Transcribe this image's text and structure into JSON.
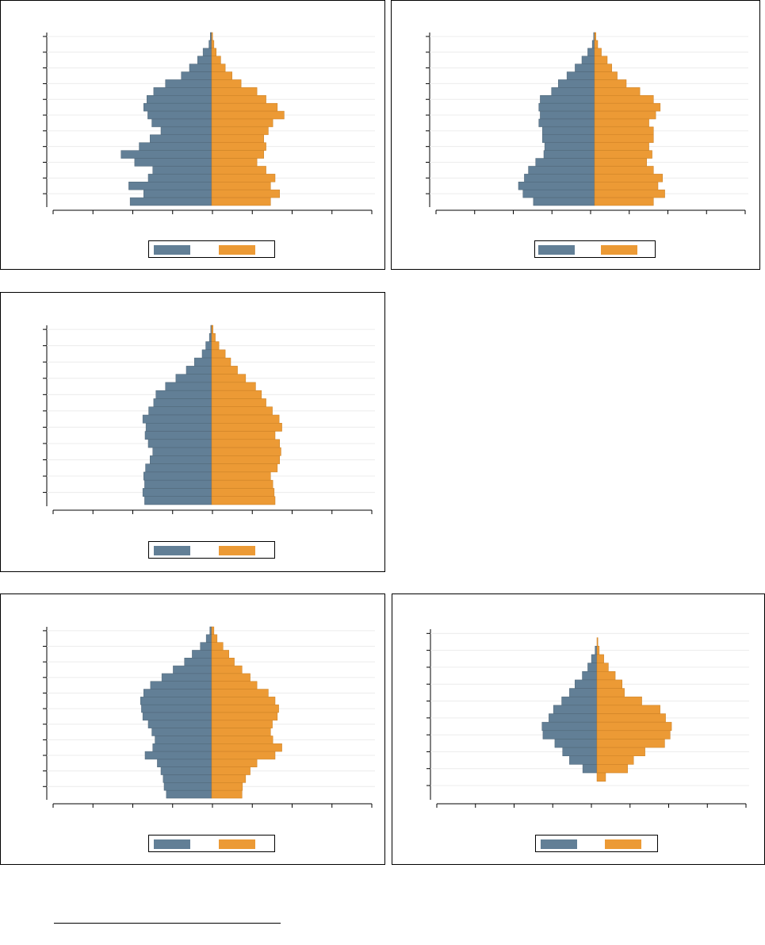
{
  "colors": {
    "male": "#627f96",
    "female": "#ec9a35",
    "grid": "#ececec",
    "axis": "#000000"
  },
  "legend": {
    "male_label": "",
    "female_label": ""
  },
  "chart_data": [
    {
      "type": "bar",
      "orientation": "horizontal",
      "subtype": "population-pyramid",
      "series": [
        {
          "values": [
            -0.3,
            -0.6,
            -1.9,
            -3.1,
            -4.9,
            -6.7,
            -10.2,
            -12.8,
            -14.3,
            -15.0,
            -14.1,
            -13.2,
            -11.2,
            -13.6,
            -16.0,
            -20.0,
            -17.0,
            -13.0,
            -14.0,
            -18.3,
            -15.0,
            -18.0
          ]
        },
        {
          "values": [
            0.2,
            0.5,
            1.0,
            2.0,
            3.0,
            4.5,
            6.5,
            10.0,
            12.0,
            14.5,
            16.0,
            13.5,
            12.5,
            11.5,
            12.0,
            11.5,
            10.0,
            12.0,
            14.0,
            13.0,
            15.0,
            13.0
          ]
        }
      ]
    },
    {
      "type": "bar",
      "orientation": "horizontal",
      "subtype": "population-pyramid",
      "series": [
        {
          "values": [
            -0.2,
            -0.5,
            -1.5,
            -2.8,
            -4.3,
            -6.1,
            -8.0,
            -9.5,
            -12.0,
            -12.3,
            -12.0,
            -12.3,
            -11.5,
            -11.5,
            -11.0,
            -11.2,
            -13.0,
            -14.6,
            -15.5,
            -16.8,
            -15.8,
            -13.5
          ]
        },
        {
          "values": [
            0.3,
            0.7,
            1.5,
            2.8,
            3.8,
            5.0,
            7.0,
            10.0,
            13.0,
            14.5,
            13.5,
            12.0,
            13.0,
            13.0,
            12.0,
            12.7,
            11.5,
            13.0,
            15.0,
            14.0,
            15.5,
            13.0
          ]
        }
      ]
    },
    {
      "type": "bar",
      "orientation": "horizontal",
      "subtype": "population-pyramid",
      "series": [
        {
          "values": [
            -0.2,
            -0.5,
            -1.3,
            -2.1,
            -3.8,
            -5.6,
            -7.9,
            -10.2,
            -12.3,
            -12.8,
            -13.9,
            -15.2,
            -14.5,
            -14.7,
            -14.0,
            -13.0,
            -13.6,
            -14.6,
            -15.0,
            -14.8,
            -15.2,
            -14.8
          ]
        },
        {
          "values": [
            0.3,
            0.8,
            1.6,
            3.0,
            4.2,
            5.7,
            7.5,
            9.7,
            11.0,
            12.0,
            13.4,
            14.9,
            15.5,
            14.0,
            15.0,
            15.3,
            15.0,
            14.5,
            13.0,
            13.5,
            13.8,
            14.0
          ]
        }
      ]
    },
    {
      "type": "bar",
      "orientation": "horizontal",
      "subtype": "population-pyramid",
      "series": [
        {
          "values": [
            -0.4,
            -1.2,
            -2.5,
            -4.3,
            -6.0,
            -8.5,
            -11.0,
            -13.5,
            -15.0,
            -15.7,
            -15.5,
            -15.2,
            -14.0,
            -13.2,
            -12.5,
            -13.0,
            -14.7,
            -12.0,
            -11.2,
            -10.7,
            -10.5,
            -10.0
          ]
        },
        {
          "values": [
            0.5,
            1.2,
            2.5,
            3.8,
            5.0,
            6.7,
            8.5,
            10.0,
            12.5,
            14.0,
            14.8,
            14.5,
            13.4,
            13.0,
            13.5,
            15.5,
            14.0,
            10.0,
            8.5,
            7.5,
            6.8,
            6.7
          ]
        }
      ]
    },
    {
      "type": "bar",
      "orientation": "horizontal",
      "subtype": "population-pyramid",
      "series": [
        {
          "values": [
            0,
            0,
            -0.4,
            -1.2,
            -2.0,
            -3.2,
            -4.8,
            -6.0,
            -7.7,
            -9.5,
            -10.5,
            -12.0,
            -11.8,
            -9.2,
            -7.5,
            -6.0,
            -3.1,
            0,
            0,
            0
          ]
        },
        {
          "values": [
            0,
            0.2,
            0.5,
            1.5,
            2.5,
            4.0,
            5.5,
            6.0,
            9.8,
            13.8,
            15.0,
            16.3,
            16.0,
            14.8,
            10.5,
            8.0,
            6.7,
            1.9,
            0,
            0
          ]
        }
      ]
    }
  ]
}
